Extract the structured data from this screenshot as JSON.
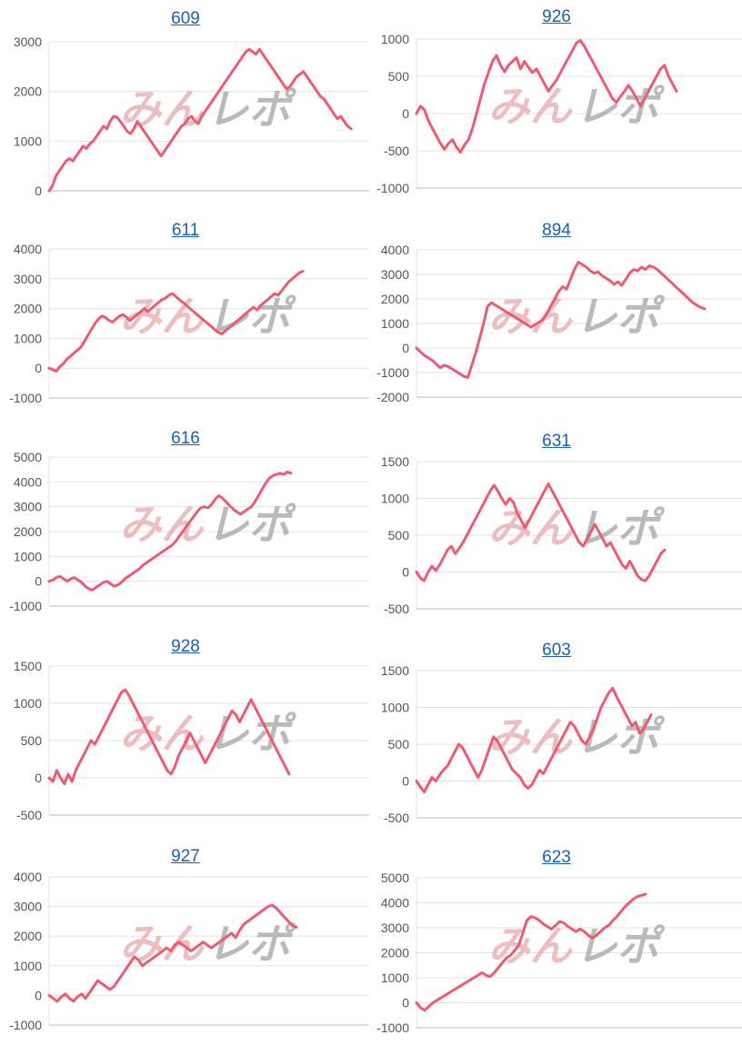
{
  "line_color": "#ef5a73",
  "title_color": "#1a5fb4",
  "watermark": {
    "part1": "みん",
    "part2": "レポ"
  },
  "chart_data": [
    {
      "title": "609",
      "type": "line",
      "yticks": [
        0,
        1000,
        2000,
        3000
      ],
      "ylim": [
        0,
        3000
      ],
      "values": [
        0,
        100,
        300,
        400,
        500,
        600,
        650,
        600,
        700,
        800,
        900,
        850,
        950,
        1000,
        1100,
        1200,
        1300,
        1250,
        1400,
        1500,
        1480,
        1400,
        1300,
        1200,
        1150,
        1250,
        1400,
        1300,
        1200,
        1100,
        1000,
        900,
        800,
        700,
        800,
        900,
        1000,
        1100,
        1200,
        1300,
        1350,
        1450,
        1500,
        1400,
        1350,
        1500,
        1600,
        1700,
        1800,
        1900,
        2000,
        2100,
        2200,
        2300,
        2400,
        2500,
        2600,
        2700,
        2800,
        2850,
        2800,
        2750,
        2850,
        2750,
        2650,
        2550,
        2450,
        2350,
        2250,
        2150,
        2050,
        2100,
        2200,
        2300,
        2350,
        2400,
        2300,
        2200,
        2100,
        2000,
        1900,
        1850,
        1750,
        1650,
        1550,
        1450,
        1500,
        1400,
        1300,
        1250
      ]
    },
    {
      "title": "926",
      "type": "line",
      "yticks": [
        -1000,
        -500,
        0,
        500,
        1000
      ],
      "ylim": [
        -1000,
        1000
      ],
      "values": [
        0,
        100,
        50,
        -100,
        -200,
        -300,
        -400,
        -480,
        -400,
        -350,
        -450,
        -520,
        -420,
        -350,
        -200,
        0,
        200,
        400,
        550,
        700,
        780,
        650,
        560,
        650,
        700,
        750,
        600,
        700,
        620,
        550,
        600,
        500,
        400,
        300,
        380,
        450,
        550,
        650,
        750,
        850,
        950,
        980,
        900,
        800,
        700,
        600,
        500,
        400,
        300,
        200,
        150,
        230,
        300,
        380,
        300,
        200,
        100,
        200,
        300,
        400,
        500,
        600,
        650,
        500,
        400,
        300
      ]
    },
    {
      "title": "611",
      "type": "line",
      "yticks": [
        -1000,
        0,
        1000,
        2000,
        3000,
        4000
      ],
      "ylim": [
        -1000,
        4000
      ],
      "values": [
        0,
        -50,
        -100,
        50,
        150,
        300,
        400,
        500,
        600,
        700,
        900,
        1100,
        1300,
        1500,
        1650,
        1750,
        1700,
        1600,
        1550,
        1650,
        1750,
        1800,
        1700,
        1600,
        1700,
        1800,
        1900,
        2000,
        1900,
        2000,
        2100,
        2200,
        2300,
        2350,
        2450,
        2500,
        2400,
        2300,
        2200,
        2100,
        2000,
        1900,
        1800,
        1700,
        1600,
        1500,
        1400,
        1300,
        1200,
        1150,
        1250,
        1350,
        1450,
        1550,
        1650,
        1750,
        1850,
        1950,
        2050,
        1950,
        2100,
        2200,
        2300,
        2400,
        2500,
        2450,
        2600,
        2750,
        2900,
        3000,
        3100,
        3200,
        3250
      ]
    },
    {
      "title": "894",
      "type": "line",
      "yticks": [
        -2000,
        -1000,
        0,
        1000,
        2000,
        3000,
        4000
      ],
      "ylim": [
        -2000,
        4000
      ],
      "values": [
        0,
        -150,
        -300,
        -400,
        -500,
        -650,
        -800,
        -700,
        -750,
        -850,
        -950,
        -1050,
        -1150,
        -1200,
        -700,
        -200,
        400,
        1000,
        1700,
        1850,
        1750,
        1650,
        1550,
        1450,
        1350,
        1250,
        1150,
        1050,
        950,
        850,
        950,
        1050,
        1150,
        1400,
        1700,
        2000,
        2300,
        2500,
        2400,
        2800,
        3200,
        3500,
        3400,
        3300,
        3150,
        3050,
        3100,
        2950,
        2850,
        2750,
        2600,
        2700,
        2550,
        2800,
        3050,
        3200,
        3150,
        3300,
        3200,
        3350,
        3300,
        3200,
        3050,
        2900,
        2750,
        2600,
        2450,
        2300,
        2150,
        2000,
        1850,
        1750,
        1650,
        1600
      ]
    },
    {
      "title": "616",
      "type": "line",
      "yticks": [
        -1000,
        0,
        1000,
        2000,
        3000,
        4000,
        5000
      ],
      "ylim": [
        -1000,
        5000
      ],
      "values": [
        0,
        50,
        150,
        200,
        100,
        0,
        100,
        150,
        50,
        -50,
        -200,
        -300,
        -350,
        -250,
        -150,
        -50,
        0,
        -100,
        -200,
        -150,
        -50,
        100,
        200,
        300,
        400,
        500,
        650,
        750,
        850,
        950,
        1050,
        1150,
        1250,
        1350,
        1450,
        1600,
        1800,
        2000,
        2200,
        2400,
        2600,
        2800,
        2950,
        3000,
        2950,
        3100,
        3300,
        3450,
        3350,
        3200,
        3050,
        2900,
        2800,
        2700,
        2800,
        2900,
        3000,
        3200,
        3450,
        3700,
        3950,
        4150,
        4250,
        4300,
        4350,
        4300,
        4400,
        4350
      ]
    },
    {
      "title": "631",
      "type": "line",
      "yticks": [
        -500,
        0,
        500,
        1000,
        1500
      ],
      "ylim": [
        -500,
        1500
      ],
      "values": [
        0,
        -80,
        -120,
        0,
        80,
        20,
        100,
        200,
        300,
        350,
        250,
        320,
        400,
        500,
        600,
        700,
        800,
        900,
        1000,
        1100,
        1180,
        1100,
        1000,
        920,
        1000,
        950,
        800,
        700,
        600,
        700,
        800,
        900,
        1000,
        1100,
        1200,
        1100,
        1000,
        900,
        800,
        700,
        600,
        500,
        400,
        350,
        450,
        550,
        650,
        550,
        450,
        350,
        400,
        300,
        200,
        100,
        50,
        150,
        50,
        -50,
        -100,
        -120,
        -50,
        50,
        150,
        250,
        300
      ]
    },
    {
      "title": "928",
      "type": "line",
      "yticks": [
        -500,
        0,
        500,
        1000,
        1500
      ],
      "ylim": [
        -500,
        1500
      ],
      "values": [
        0,
        -50,
        100,
        0,
        -80,
        50,
        -50,
        100,
        200,
        300,
        400,
        500,
        450,
        550,
        650,
        750,
        850,
        950,
        1050,
        1150,
        1180,
        1100,
        1000,
        900,
        800,
        700,
        600,
        500,
        400,
        300,
        200,
        100,
        50,
        150,
        300,
        400,
        500,
        600,
        500,
        400,
        300,
        200,
        300,
        400,
        500,
        600,
        700,
        800,
        900,
        850,
        750,
        850,
        950,
        1050,
        950,
        850,
        750,
        650,
        550,
        450,
        350,
        250,
        150,
        50
      ]
    },
    {
      "title": "603",
      "type": "line",
      "yticks": [
        -500,
        0,
        500,
        1000,
        1500
      ],
      "ylim": [
        -500,
        1500
      ],
      "values": [
        0,
        -80,
        -150,
        -50,
        50,
        0,
        80,
        150,
        200,
        300,
        400,
        500,
        450,
        350,
        250,
        150,
        50,
        150,
        300,
        450,
        600,
        550,
        450,
        350,
        250,
        150,
        100,
        50,
        -50,
        -100,
        -50,
        50,
        150,
        100,
        200,
        300,
        400,
        500,
        600,
        700,
        800,
        750,
        650,
        550,
        500,
        600,
        700,
        850,
        1000,
        1100,
        1200,
        1260,
        1150,
        1050,
        950,
        850,
        750,
        800,
        650,
        700,
        800,
        900
      ]
    },
    {
      "title": "927",
      "type": "line",
      "yticks": [
        -1000,
        0,
        1000,
        2000,
        3000,
        4000
      ],
      "ylim": [
        -1000,
        4000
      ],
      "values": [
        0,
        -100,
        -200,
        -50,
        50,
        -100,
        -200,
        -50,
        50,
        -100,
        100,
        300,
        500,
        400,
        300,
        200,
        300,
        500,
        700,
        900,
        1100,
        1300,
        1200,
        1000,
        1100,
        1200,
        1300,
        1400,
        1500,
        1600,
        1500,
        1700,
        1800,
        1700,
        1600,
        1500,
        1600,
        1700,
        1800,
        1700,
        1600,
        1700,
        1800,
        1900,
        2000,
        2100,
        1950,
        2200,
        2400,
        2500,
        2600,
        2700,
        2800,
        2900,
        3000,
        3050,
        2950,
        2800,
        2650,
        2500,
        2350,
        2300
      ]
    },
    {
      "title": "623",
      "type": "line",
      "yticks": [
        -1000,
        0,
        1000,
        2000,
        3000,
        4000,
        5000
      ],
      "ylim": [
        -1000,
        5000
      ],
      "values": [
        0,
        -200,
        -300,
        -150,
        0,
        100,
        200,
        300,
        400,
        500,
        600,
        700,
        800,
        900,
        1000,
        1100,
        1200,
        1100,
        1050,
        1200,
        1400,
        1600,
        1800,
        1900,
        2100,
        2300,
        2800,
        3300,
        3450,
        3400,
        3300,
        3150,
        3050,
        2950,
        3100,
        3250,
        3200,
        3050,
        2950,
        2850,
        2950,
        2850,
        2700,
        2600,
        2700,
        2850,
        3000,
        3100,
        3300,
        3450,
        3650,
        3850,
        4000,
        4150,
        4250,
        4300,
        4350
      ]
    }
  ]
}
